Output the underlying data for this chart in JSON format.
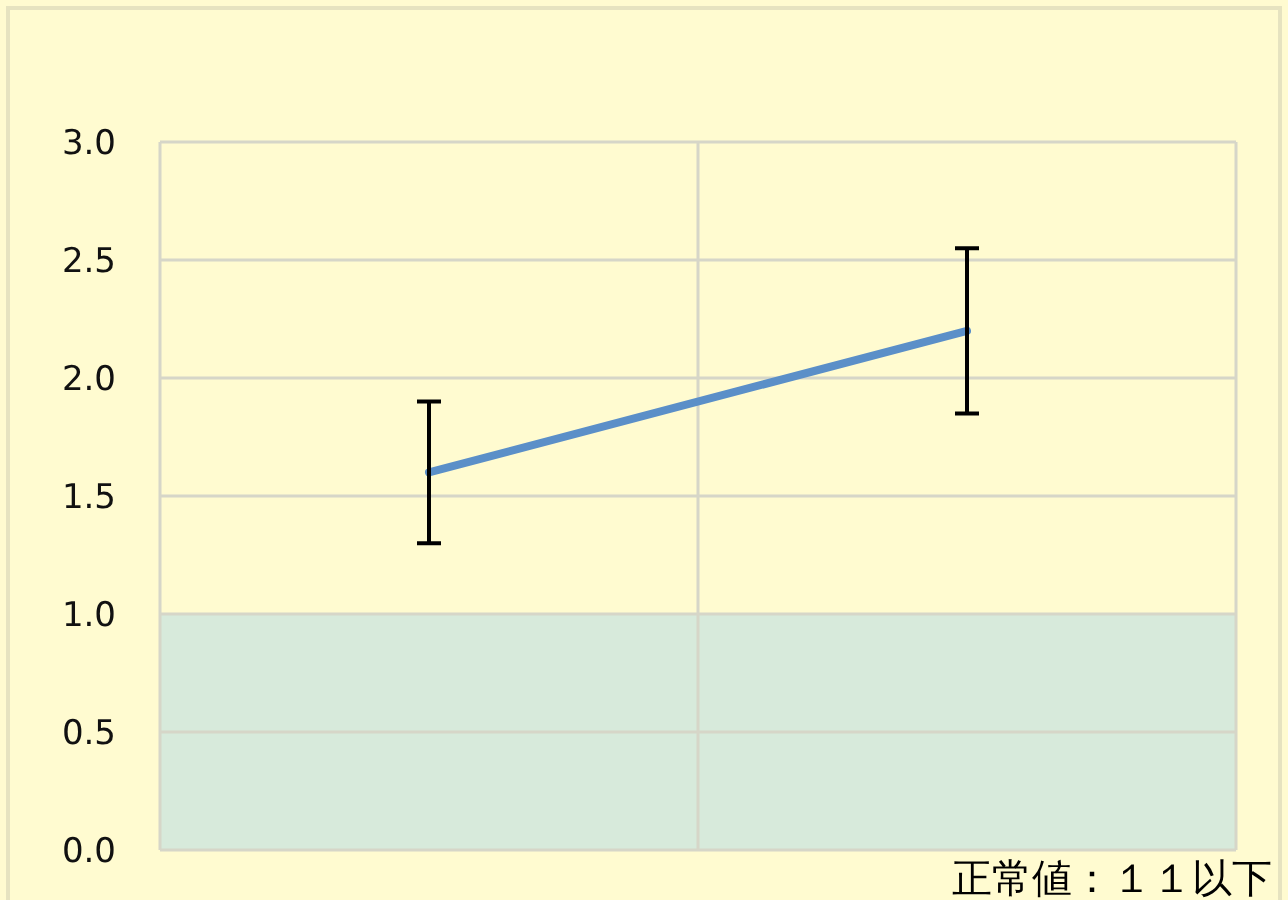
{
  "chart_data": {
    "type": "line",
    "categories": [
      null,
      null
    ],
    "series": [
      {
        "color": "#5b8fc8",
        "values": [
          1.6,
          2.2
        ],
        "errors": [
          [
            1.3,
            1.9
          ],
          [
            1.85,
            2.55
          ]
        ]
      }
    ],
    "ylim": [
      0,
      3
    ],
    "yticks": [
      {
        "value": 0,
        "label": "0.0"
      },
      {
        "value": 0.5,
        "label": "0.5"
      },
      {
        "value": 1,
        "label": "1.0"
      },
      {
        "value": 1.5,
        "label": "1.5"
      },
      {
        "value": 2,
        "label": "2.0"
      },
      {
        "value": 2.5,
        "label": "2.5"
      },
      {
        "value": 3,
        "label": "3.0"
      }
    ],
    "bands": [
      {
        "axis": "y",
        "from": 0,
        "to": 1,
        "color": "#d7eadb"
      }
    ],
    "annotations": [
      "正常値：１１以下"
    ],
    "grid": true,
    "marker": "none",
    "line_style": "solid"
  }
}
